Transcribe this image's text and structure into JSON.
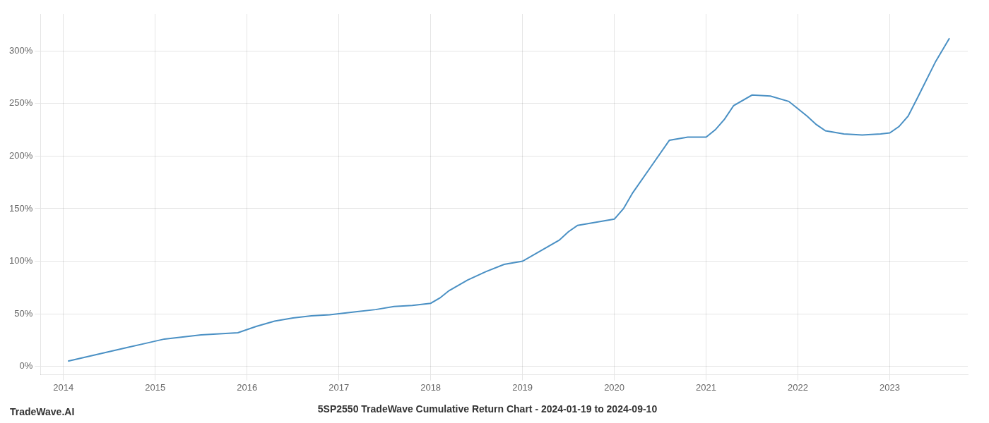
{
  "chart_data": {
    "type": "line",
    "title": "5SP2550 TradeWave Cumulative Return Chart - 2024-01-19 to 2024-09-10",
    "annotations": [
      "TradeWave.AI"
    ],
    "color": "#4a90c4",
    "x": [
      2014.05,
      2014.15,
      2014.3,
      2014.5,
      2014.7,
      2014.9,
      2015.1,
      2015.3,
      2015.5,
      2015.7,
      2015.9,
      2016.1,
      2016.3,
      2016.5,
      2016.7,
      2016.9,
      2017.0,
      2017.2,
      2017.4,
      2017.6,
      2017.8,
      2018.0,
      2018.1,
      2018.2,
      2018.4,
      2018.6,
      2018.8,
      2019.0,
      2019.2,
      2019.4,
      2019.5,
      2019.6,
      2019.8,
      2020.0,
      2020.1,
      2020.2,
      2020.4,
      2020.6,
      2020.8,
      2021.0,
      2021.1,
      2021.2,
      2021.3,
      2021.5,
      2021.7,
      2021.9,
      2022.0,
      2022.1,
      2022.2,
      2022.3,
      2022.5,
      2022.7,
      2022.9,
      2023.0,
      2023.1,
      2023.2,
      2023.3,
      2023.5,
      2023.65
    ],
    "values": [
      5,
      7,
      10,
      14,
      18,
      22,
      26,
      28,
      30,
      31,
      32,
      38,
      43,
      46,
      48,
      49,
      50,
      52,
      54,
      57,
      58,
      60,
      65,
      72,
      82,
      90,
      97,
      100,
      110,
      120,
      128,
      134,
      137,
      140,
      150,
      165,
      190,
      215,
      218,
      218,
      225,
      235,
      248,
      258,
      257,
      252,
      245,
      238,
      230,
      224,
      221,
      220,
      221,
      222,
      228,
      238,
      255,
      290,
      312
    ],
    "xlim": [
      2013.75,
      2023.85
    ],
    "ylim": [
      -8,
      335
    ],
    "xticks": [
      2014,
      2015,
      2016,
      2017,
      2018,
      2019,
      2020,
      2021,
      2022,
      2023
    ],
    "yticks": [
      {
        "value": 0,
        "label": "0%"
      },
      {
        "value": 50,
        "label": "50%"
      },
      {
        "value": 100,
        "label": "100%"
      },
      {
        "value": 150,
        "label": "150%"
      },
      {
        "value": 200,
        "label": "200%"
      },
      {
        "value": 250,
        "label": "250%"
      },
      {
        "value": 300,
        "label": "300%"
      }
    ],
    "grid": true
  }
}
